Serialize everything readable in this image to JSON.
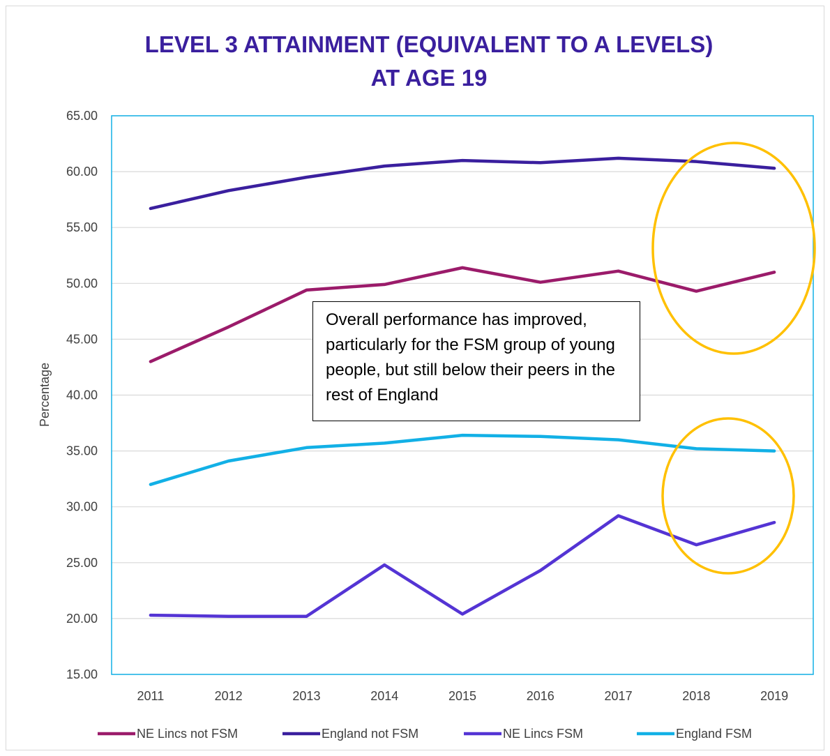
{
  "chart_data": {
    "type": "line",
    "title_lines": [
      "LEVEL 3 ATTAINMENT (EQUIVALENT TO A LEVELS)",
      "AT AGE 19"
    ],
    "ylabel": "Percentage",
    "xlabel": "",
    "categories": [
      "2011",
      "2012",
      "2013",
      "2014",
      "2015",
      "2016",
      "2017",
      "2018",
      "2019"
    ],
    "ylim": [
      15,
      65
    ],
    "yticks": [
      "15.00",
      "20.00",
      "25.00",
      "30.00",
      "35.00",
      "40.00",
      "45.00",
      "50.00",
      "55.00",
      "60.00",
      "65.00"
    ],
    "grid": true,
    "legend_position": "bottom",
    "series": [
      {
        "name": "NE Lincs not FSM",
        "color": "#9b1b6a",
        "values": [
          43.0,
          46.1,
          49.4,
          49.9,
          51.4,
          50.1,
          51.1,
          49.3,
          51.0
        ]
      },
      {
        "name": "England not FSM",
        "color": "#3a1f9e",
        "values": [
          56.7,
          58.3,
          59.5,
          60.5,
          61.0,
          60.8,
          61.2,
          60.9,
          60.3
        ]
      },
      {
        "name": "NE Lincs FSM",
        "color": "#5434d4",
        "values": [
          20.3,
          20.2,
          20.2,
          24.8,
          20.4,
          24.3,
          29.2,
          26.6,
          28.6
        ]
      },
      {
        "name": "England FSM",
        "color": "#12b0e6",
        "values": [
          32.0,
          34.1,
          35.3,
          35.7,
          36.4,
          36.3,
          36.0,
          35.2,
          35.0
        ]
      }
    ],
    "annotation": "Overall performance has improved, particularly for the FSM group of young people, but still below their peers in the rest of England",
    "highlight_color": "#ffc000"
  }
}
